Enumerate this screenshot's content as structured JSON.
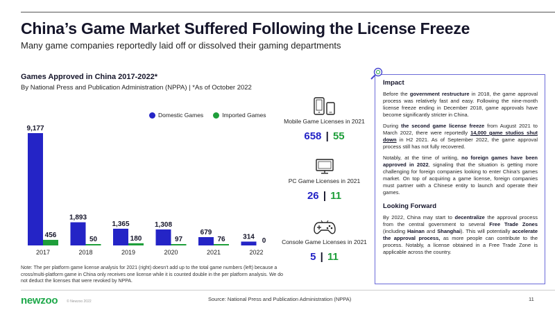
{
  "header": {
    "title": "China’s Game Market Suffered Following the License Freeze",
    "subtitle": "Many game companies reportedly laid off or dissolved their gaming departments"
  },
  "chart": {
    "title": "Games Approved in China 2017-2022*",
    "subtitle": "By National Press and Publication Administration (NPPA) | *As of October 2022",
    "legend_domestic": "Domestic Games",
    "legend_imported": "Imported Games"
  },
  "chart_data": {
    "type": "bar",
    "categories": [
      "2017",
      "2018",
      "2019",
      "2020",
      "2021",
      "2022"
    ],
    "series": [
      {
        "name": "Domestic Games",
        "values": [
          9177,
          1893,
          1365,
          1308,
          679,
          314
        ],
        "labels": [
          "9,177",
          "1,893",
          "1,365",
          "1,308",
          "679",
          "314"
        ]
      },
      {
        "name": "Imported Games",
        "values": [
          456,
          50,
          180,
          97,
          76,
          0
        ],
        "labels": [
          "456",
          "50",
          "180",
          "97",
          "76",
          "0"
        ]
      }
    ],
    "ylim": [
      0,
      9177
    ],
    "grid": false,
    "legend": "top-right"
  },
  "licenses": {
    "mobile": {
      "label": "Mobile Game Licenses in 2021",
      "domestic": "658",
      "separator": "|",
      "imported": "55"
    },
    "pc": {
      "label": "PC Game Licenses in 2021",
      "domestic": "26",
      "separator": "|",
      "imported": "11"
    },
    "console": {
      "label": "Console Game Licenses in 2021",
      "domestic": "5",
      "separator": "|",
      "imported": "11"
    }
  },
  "note": "Note: The per platform game license analysis for 2021 (right) doesn't add up to the total game numbers (left) because a cross/multi-platform game in China only receives one license while it is counted double in the per platform analysis. We do not deduct the licenses that were revoked by NPPA.",
  "sidebar": {
    "impact_heading": "Impact",
    "p1": {
      "a": "Before the ",
      "b": "government restructure",
      "c": " in 2018, the game approval process was relatively fast and easy. Following the nine-month license freeze ending in December 2018, game approvals have become significantly stricter in China."
    },
    "p2": {
      "a": "During ",
      "b": "the second game license freeze",
      "c": " from August 2021 to March 2022, there were reportedly ",
      "d": "14,000 game studios shut down",
      "e": " in H2 2021. As of September 2022, the game approval process still has not fully recovered."
    },
    "p3": {
      "a": "Notably, at the time of writing, ",
      "b": "no foreign games have been approved in 2022",
      "c": ", signaling that the situation is getting more challenging for foreign companies looking to enter China's games market. On top of acquiring a game license, foreign companies must partner with a Chinese entity to launch and operate their games."
    },
    "forward_heading": "Looking Forward",
    "p4": {
      "a": "By 2022, China may start to ",
      "b": "decentralize",
      "c": " the approval process from the central government to several ",
      "d": "Free Trade Zones",
      "e": " (including ",
      "f": "Hainan",
      "g": " and ",
      "h": "Shanghai",
      "i": "). This will potentially ",
      "j": "accelerate the approval process,",
      "k": " as more people can contribute to the process. Notably, a license obtained in a Free Trade Zone is applicable across the country."
    }
  },
  "footer": {
    "logo": "newzoo",
    "copyright": "© Newzoo 2022",
    "source": "Source: National Press and Publication Administration (NPPA)",
    "page": "11"
  },
  "colors": {
    "domestic": "#2424c6",
    "imported": "#1e9e3a",
    "brand": "#1ea84a",
    "box_border": "#6a6ad8"
  },
  "icons": {
    "mobile": "mobile-tablet-icon",
    "pc": "monitor-icon",
    "console": "gamepad-icon",
    "impact": "magnifier-icon"
  }
}
